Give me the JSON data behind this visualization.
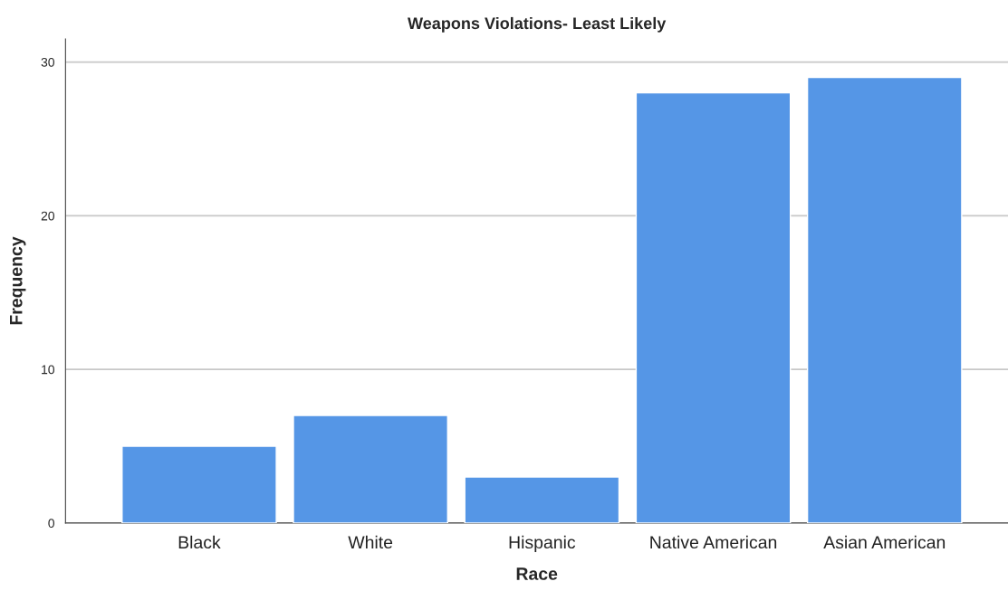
{
  "chart_data": {
    "type": "bar",
    "title": "Weapons Violations- Least Likely",
    "xlabel": "Race",
    "ylabel": "Frequency",
    "categories": [
      "Black",
      "White",
      "Hispanic",
      "Native American",
      "Asian American"
    ],
    "values": [
      5,
      7,
      3,
      28,
      29
    ],
    "color": "#5596e6",
    "ylim": [
      0,
      31.5
    ],
    "yticks": [
      0,
      10,
      20,
      30
    ],
    "grid": "y",
    "legend": false
  }
}
